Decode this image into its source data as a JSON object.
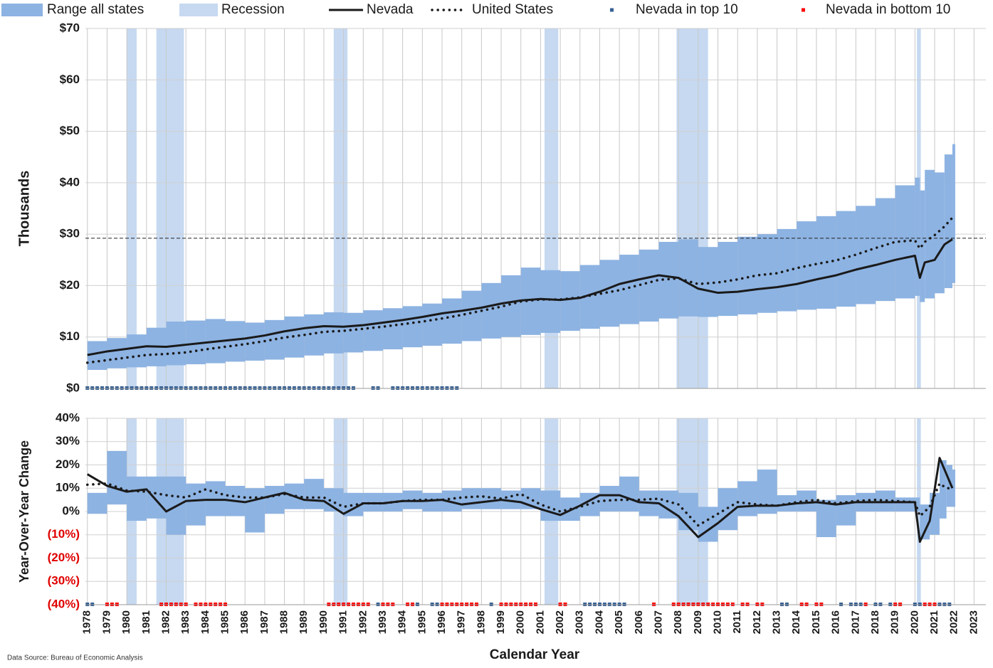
{
  "source": "Data Source: Bureau of Economic Analysis",
  "chart_data": [
    {
      "type": "line",
      "ylabel": "Thousands",
      "xlim": [
        1977.9,
        2023.6
      ],
      "ylim": [
        0,
        70
      ],
      "yticks": [
        {
          "value": 0,
          "label": "$0"
        },
        {
          "value": 10,
          "label": "$10"
        },
        {
          "value": 20,
          "label": "$20"
        },
        {
          "value": 30,
          "label": "$30"
        },
        {
          "value": 40,
          "label": "$40"
        },
        {
          "value": 50,
          "label": "$50"
        },
        {
          "value": 60,
          "label": "$60"
        },
        {
          "value": 70,
          "label": "$70"
        }
      ],
      "xticks": [
        1978,
        1979,
        1980,
        1981,
        1982,
        1983,
        1984,
        1985,
        1986,
        1987,
        1988,
        1989,
        1990,
        1991,
        1992,
        1993,
        1994,
        1995,
        1996,
        1997,
        1998,
        1999,
        2000,
        2001,
        2002,
        2003,
        2004,
        2005,
        2006,
        2007,
        2008,
        2009,
        2010,
        2011,
        2012,
        2013,
        2014,
        2015,
        2016,
        2017,
        2018,
        2019,
        2020,
        2021,
        2022,
        2023
      ],
      "xtick_labels": false,
      "grid": true,
      "reference_line": 29.2,
      "x": [
        1978,
        1979,
        1980,
        1981,
        1982,
        1983,
        1984,
        1985,
        1986,
        1987,
        1988,
        1989,
        1990,
        1991,
        1992,
        1993,
        1994,
        1995,
        1996,
        1997,
        1998,
        1999,
        2000,
        2001,
        2002,
        2003,
        2004,
        2005,
        2006,
        2007,
        2008,
        2009,
        2010,
        2011,
        2012,
        2013,
        2014,
        2015,
        2016,
        2017,
        2018,
        2019,
        2020,
        2020.25,
        2020.5,
        2021,
        2021.5,
        2021.9
      ],
      "range": {
        "name": "Range all states",
        "color": "#8db3e2",
        "low": [
          3.6,
          3.9,
          4.1,
          4.3,
          4.5,
          4.7,
          4.9,
          5.2,
          5.4,
          5.6,
          6.0,
          6.4,
          6.8,
          7.0,
          7.3,
          7.6,
          8.0,
          8.3,
          8.7,
          9.2,
          9.7,
          10.0,
          10.4,
          10.8,
          11.2,
          11.6,
          12.0,
          12.5,
          13.0,
          13.6,
          14.0,
          13.9,
          14.1,
          14.4,
          14.7,
          15.0,
          15.3,
          15.5,
          15.9,
          16.4,
          17.0,
          17.5,
          18.0,
          16.8,
          17.5,
          18.5,
          19.5,
          20.5
        ],
        "high": [
          9.2,
          9.8,
          10.5,
          11.8,
          13.0,
          13.2,
          13.5,
          13.1,
          12.8,
          13.3,
          14.0,
          14.4,
          14.8,
          14.7,
          15.2,
          15.6,
          16.0,
          16.5,
          17.5,
          19.0,
          20.5,
          22.0,
          23.5,
          23.0,
          22.8,
          24.0,
          25.0,
          26.0,
          27.0,
          28.5,
          29.0,
          27.5,
          28.5,
          29.5,
          30.0,
          31.0,
          32.5,
          33.5,
          34.5,
          35.5,
          37.0,
          39.5,
          41.0,
          38.5,
          42.5,
          42.0,
          45.5,
          47.5
        ]
      },
      "series": [
        {
          "name": "Nevada",
          "color": "#1a1a1a",
          "style": "solid",
          "values": [
            6.5,
            7.2,
            7.7,
            8.2,
            8.1,
            8.5,
            8.9,
            9.3,
            9.7,
            10.3,
            11.1,
            11.7,
            12.1,
            12.0,
            12.3,
            12.8,
            13.3,
            13.9,
            14.6,
            15.1,
            15.7,
            16.5,
            17.1,
            17.4,
            17.2,
            17.6,
            18.8,
            20.3,
            21.2,
            22.0,
            21.5,
            19.4,
            18.6,
            18.8,
            19.3,
            19.7,
            20.3,
            21.2,
            22.0,
            23.1,
            24.0,
            25.0,
            25.8,
            21.5,
            24.5,
            25.0,
            28.0,
            29.0
          ]
        },
        {
          "name": "United States",
          "color": "#1a1a1a",
          "style": "dotted",
          "values": [
            5.0,
            5.5,
            6.0,
            6.5,
            6.7,
            7.0,
            7.6,
            8.1,
            8.6,
            9.2,
            9.9,
            10.4,
            11.0,
            11.2,
            11.6,
            12.0,
            12.5,
            13.0,
            13.6,
            14.3,
            15.1,
            15.9,
            16.9,
            17.3,
            17.3,
            17.7,
            18.4,
            19.1,
            20.1,
            21.1,
            21.4,
            20.3,
            20.6,
            21.2,
            22.0,
            22.4,
            23.4,
            24.2,
            24.9,
            26.0,
            27.3,
            28.5,
            28.8,
            27.2,
            28.5,
            29.8,
            31.5,
            33.2
          ]
        }
      ],
      "recessions": {
        "name": "Recession",
        "color": "#c6d9f1",
        "periods": [
          [
            1980.0,
            1980.5
          ],
          [
            1981.5,
            1982.9
          ],
          [
            1990.5,
            1991.2
          ],
          [
            2001.2,
            2001.9
          ],
          [
            2007.9,
            2009.5
          ],
          [
            2020.1,
            2020.3
          ]
        ]
      },
      "top10": {
        "name": "Nevada in top 10",
        "color": "#366092",
        "periods": [
          [
            1978,
            1987.75
          ],
          [
            1988,
            1990.5
          ],
          [
            1990.75,
            1991.5
          ],
          [
            1992.5,
            1992.75
          ],
          [
            1993.5,
            1996.75
          ]
        ]
      },
      "bottom10": {
        "name": "Nevada in bottom 10",
        "color": "#ff0000",
        "periods": []
      }
    },
    {
      "type": "line",
      "ylabel": "Year-Over-Year Change",
      "xlabel": "Calendar Year",
      "xlim": [
        1977.9,
        2023.6
      ],
      "ylim": [
        -40,
        40
      ],
      "yticks": [
        {
          "value": 40,
          "label": "40%"
        },
        {
          "value": 30,
          "label": "30%"
        },
        {
          "value": 20,
          "label": "20%"
        },
        {
          "value": 10,
          "label": "10%"
        },
        {
          "value": 0,
          "label": "0%"
        },
        {
          "value": -10,
          "label": "(10%)"
        },
        {
          "value": -20,
          "label": "(20%)"
        },
        {
          "value": -30,
          "label": "(30%)"
        },
        {
          "value": -40,
          "label": "(40%)"
        }
      ],
      "negative_tick_color": "#e00000",
      "xticks": [
        1978,
        1979,
        1980,
        1981,
        1982,
        1983,
        1984,
        1985,
        1986,
        1987,
        1988,
        1989,
        1990,
        1991,
        1992,
        1993,
        1994,
        1995,
        1996,
        1997,
        1998,
        1999,
        2000,
        2001,
        2002,
        2003,
        2004,
        2005,
        2006,
        2007,
        2008,
        2009,
        2010,
        2011,
        2012,
        2013,
        2014,
        2015,
        2016,
        2017,
        2018,
        2019,
        2020,
        2021,
        2022,
        2023
      ],
      "xtick_labels": true,
      "grid": true,
      "x": [
        1978,
        1979,
        1980,
        1981,
        1982,
        1983,
        1984,
        1985,
        1986,
        1987,
        1988,
        1989,
        1990,
        1991,
        1992,
        1993,
        1994,
        1995,
        1996,
        1997,
        1998,
        1999,
        2000,
        2001,
        2002,
        2003,
        2004,
        2005,
        2006,
        2007,
        2008,
        2009,
        2010,
        2011,
        2012,
        2013,
        2014,
        2015,
        2016,
        2017,
        2018,
        2019,
        2020,
        2020.25,
        2020.75,
        2021.25,
        2021.6,
        2021.9
      ],
      "range": {
        "color": "#8db3e2",
        "low": [
          -1,
          3,
          -4,
          -3,
          -10,
          -6,
          -2,
          -2,
          -9,
          -1,
          1,
          1,
          0,
          -2,
          0,
          0,
          1,
          0,
          0,
          1,
          1,
          1,
          1,
          -4,
          -4,
          -2,
          0,
          0,
          -2,
          -3,
          -8,
          -13,
          -8,
          -2,
          -1,
          0,
          0,
          -11,
          -6,
          0,
          0,
          0,
          0,
          -12,
          -10,
          -3,
          2,
          2
        ],
        "high": [
          8,
          26,
          15,
          15,
          15,
          12,
          13,
          11,
          10,
          11,
          12,
          14,
          10,
          8,
          8,
          8,
          9,
          8,
          9,
          10,
          10,
          9,
          10,
          9,
          6,
          8,
          11,
          15,
          9,
          9,
          8,
          2,
          10,
          13,
          18,
          7,
          9,
          5,
          7,
          8,
          9,
          6,
          6,
          3,
          8,
          22,
          20,
          18
        ]
      },
      "series": [
        {
          "color": "#1a1a1a",
          "style": "solid",
          "values": [
            16,
            11,
            8.5,
            9.5,
            0,
            4.5,
            5,
            5,
            4,
            6,
            8,
            5,
            4.5,
            -1,
            3.5,
            3.5,
            4.5,
            4.5,
            5,
            3,
            4,
            5,
            4,
            1,
            -1.5,
            2.5,
            7,
            7,
            4,
            3.5,
            -2,
            -11,
            -5,
            2,
            2.5,
            2.5,
            3.5,
            4,
            3,
            4,
            4,
            4,
            4,
            -13,
            -4,
            23,
            16,
            10
          ]
        },
        {
          "color": "#1a1a1a",
          "style": "dotted",
          "values": [
            11.5,
            12,
            9,
            8.5,
            7,
            6,
            9.5,
            7,
            6,
            6,
            7.5,
            6,
            6,
            2,
            3.5,
            3.5,
            4.5,
            5,
            5,
            6,
            6.5,
            5.5,
            7.5,
            3,
            0,
            2,
            4.5,
            5,
            5,
            5.5,
            3,
            -6,
            -1,
            4,
            3,
            2.5,
            4,
            5,
            3.5,
            4.5,
            5,
            4.5,
            4,
            -2,
            2,
            12,
            10,
            10
          ]
        }
      ],
      "recessions": {
        "color": "#c6d9f1",
        "periods": [
          [
            1980.0,
            1980.5
          ],
          [
            1981.5,
            1982.9
          ],
          [
            1990.5,
            1991.2
          ],
          [
            2001.2,
            2001.9
          ],
          [
            2007.9,
            2009.5
          ],
          [
            2020.1,
            2020.3
          ]
        ]
      },
      "top10": {
        "color": "#366092",
        "periods": [
          [
            1978,
            1978.25
          ],
          [
            1992.75,
            1992.75
          ],
          [
            1994.75,
            1994.75
          ],
          [
            1995.5,
            1995.75
          ],
          [
            1998.5,
            1998.5
          ],
          [
            2003.25,
            2005.25
          ],
          [
            2013.25,
            2013.5
          ],
          [
            2016.25,
            2016.25
          ],
          [
            2016.75,
            2017.25
          ],
          [
            2018,
            2018.25
          ],
          [
            2018.75,
            2018.75
          ],
          [
            2020,
            2020.25
          ],
          [
            2021.25,
            2021.75
          ]
        ]
      },
      "bottom10": {
        "color": "#ff0000",
        "periods": [
          [
            1979,
            1979.5
          ],
          [
            1981.75,
            1983
          ],
          [
            1983.5,
            1985
          ],
          [
            1990.25,
            1991.5
          ],
          [
            1991.75,
            1992.25
          ],
          [
            1993,
            1993.5
          ],
          [
            1994.25,
            1994.5
          ],
          [
            1996,
            1997.75
          ],
          [
            1999,
            2000
          ],
          [
            2000.25,
            2000.75
          ],
          [
            2002,
            2002.25
          ],
          [
            2006.75,
            2006.75
          ],
          [
            2007.75,
            2008
          ],
          [
            2008.25,
            2010.75
          ],
          [
            2011.25,
            2011.5
          ],
          [
            2012,
            2012.25
          ],
          [
            2014.25,
            2014.5
          ],
          [
            2015,
            2015.25
          ],
          [
            2017.5,
            2017.5
          ],
          [
            2019,
            2019.25
          ],
          [
            2020.5,
            2021
          ]
        ]
      }
    }
  ]
}
